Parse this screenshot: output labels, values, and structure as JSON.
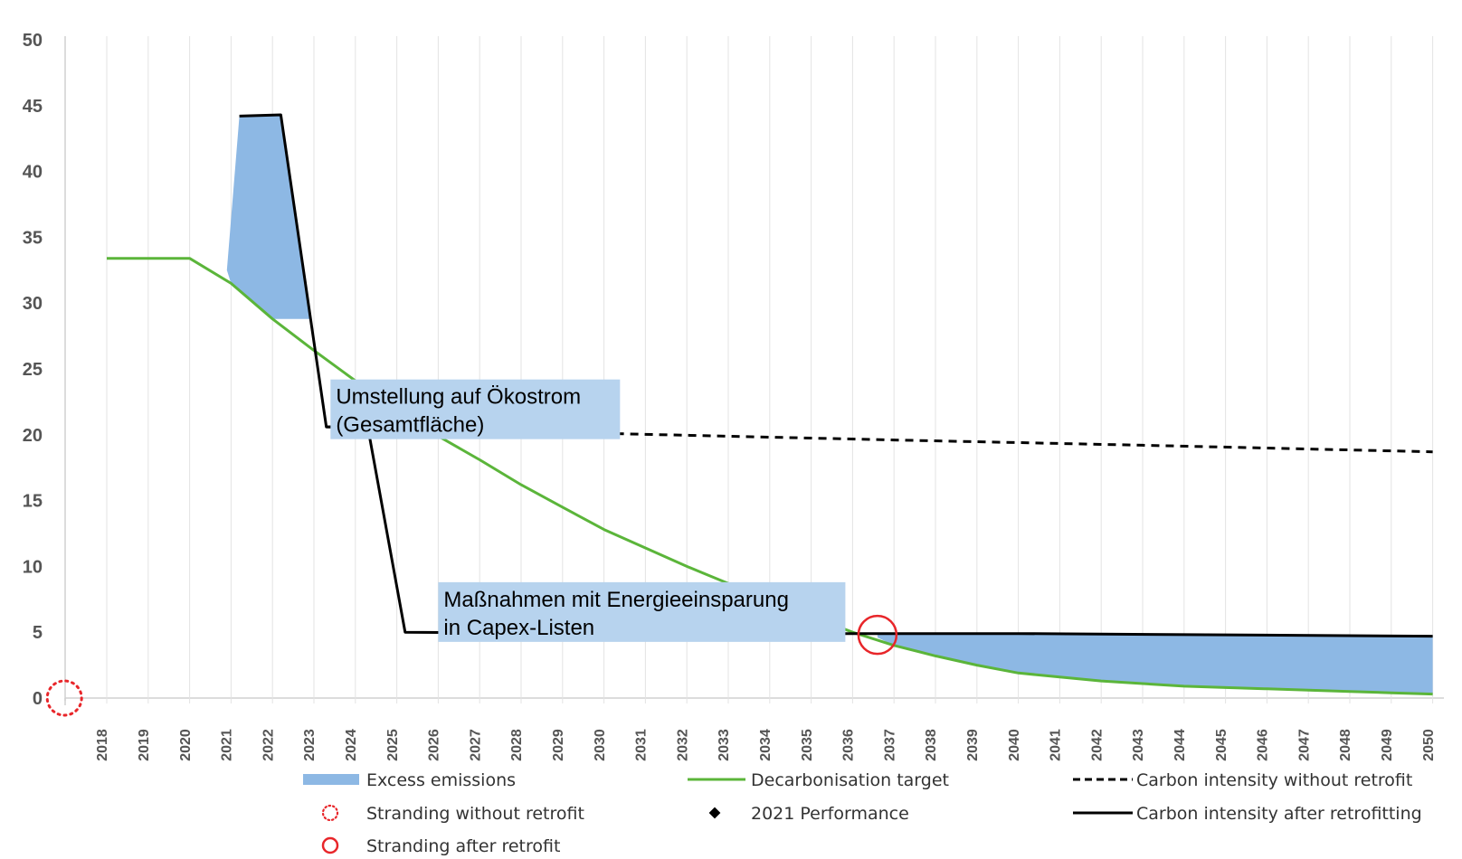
{
  "chart_data": {
    "type": "line",
    "title": "",
    "xlabel": "",
    "ylabel": "",
    "ylim": [
      0,
      50
    ],
    "yticks": [
      "0",
      "5",
      "10",
      "15",
      "20",
      "25",
      "30",
      "35",
      "40",
      "45",
      "50"
    ],
    "grid": "vertical",
    "categories": [
      "2018",
      "2019",
      "2020",
      "2021",
      "2022",
      "2023",
      "2024",
      "2025",
      "2026",
      "2027",
      "2028",
      "2029",
      "2030",
      "2031",
      "2032",
      "2033",
      "2034",
      "2035",
      "2036",
      "2037",
      "2038",
      "2039",
      "2040",
      "2041",
      "2042",
      "2043",
      "2044",
      "2045",
      "2046",
      "2047",
      "2048",
      "2049",
      "2050"
    ],
    "series": [
      {
        "name": "Decarbonisation target",
        "color": "#5BB53A",
        "style": "solid",
        "points": [
          [
            2018,
            33.4
          ],
          [
            2020,
            33.4
          ],
          [
            2021,
            31.5
          ],
          [
            2022,
            28.8
          ],
          [
            2023,
            26.4
          ],
          [
            2024,
            24.1
          ],
          [
            2025,
            21.9
          ],
          [
            2026,
            19.9
          ],
          [
            2027,
            18.1
          ],
          [
            2028,
            16.2
          ],
          [
            2029,
            14.5
          ],
          [
            2030,
            12.8
          ],
          [
            2031,
            11.4
          ],
          [
            2032,
            10.0
          ],
          [
            2033,
            8.7
          ],
          [
            2034,
            7.4
          ],
          [
            2035,
            6.2
          ],
          [
            2036,
            5.0
          ],
          [
            2037,
            4.0
          ],
          [
            2038,
            3.2
          ],
          [
            2039,
            2.5
          ],
          [
            2040,
            1.9
          ],
          [
            2041,
            1.6
          ],
          [
            2042,
            1.3
          ],
          [
            2043,
            1.1
          ],
          [
            2044,
            0.9
          ],
          [
            2045,
            0.8
          ],
          [
            2046,
            0.7
          ],
          [
            2047,
            0.6
          ],
          [
            2048,
            0.5
          ],
          [
            2049,
            0.4
          ],
          [
            2050,
            0.3
          ]
        ]
      },
      {
        "name": "Carbon intensity without retrofit",
        "color": "#000000",
        "style": "dashed",
        "points": [
          [
            2023.3,
            20.6
          ],
          [
            2030,
            20.1
          ],
          [
            2037,
            19.6
          ],
          [
            2043,
            19.2
          ],
          [
            2050,
            18.7
          ]
        ]
      },
      {
        "name": "Carbon intensity after retrofitting",
        "color": "#000000",
        "style": "solid",
        "points": [
          [
            2021.2,
            44.2
          ],
          [
            2022.2,
            44.3
          ],
          [
            2023.3,
            20.6
          ],
          [
            2024.3,
            20.6
          ],
          [
            2025.2,
            5.0
          ],
          [
            2030,
            4.9
          ],
          [
            2035,
            4.9
          ],
          [
            2040,
            4.9
          ],
          [
            2045,
            4.8
          ],
          [
            2050,
            4.7
          ]
        ]
      }
    ],
    "excess_emissions": [
      {
        "name": "2021-2023",
        "color": "#8DB8E4",
        "top": [
          [
            2020.9,
            32.5
          ],
          [
            2021.2,
            44.2
          ],
          [
            2022.2,
            44.3
          ],
          [
            2022.9,
            29.0
          ]
        ],
        "bottom": [
          [
            2020.9,
            32.5
          ],
          [
            2021.0,
            31.5
          ],
          [
            2022.0,
            28.8
          ],
          [
            2022.9,
            28.8
          ]
        ]
      },
      {
        "name": "2036-2050",
        "color": "#8DB8E4",
        "top": [
          [
            2036.6,
            4.9
          ],
          [
            2045,
            4.8
          ],
          [
            2050,
            4.7
          ]
        ],
        "bottom": [
          [
            2036.6,
            4.6
          ],
          [
            2037,
            4.0
          ],
          [
            2038,
            3.2
          ],
          [
            2039,
            2.5
          ],
          [
            2040,
            1.9
          ],
          [
            2041,
            1.6
          ],
          [
            2042,
            1.3
          ],
          [
            2043,
            1.1
          ],
          [
            2044,
            0.9
          ],
          [
            2045,
            0.8
          ],
          [
            2046,
            0.7
          ],
          [
            2047,
            0.6
          ],
          [
            2048,
            0.5
          ],
          [
            2049,
            0.4
          ],
          [
            2050,
            0.3
          ]
        ]
      }
    ],
    "stranding_without_retrofit": {
      "x": 2017,
      "y": 0
    },
    "stranding_after_retrofit": {
      "x": 2036.6,
      "y": 4.8
    },
    "annotations": [
      {
        "lines": [
          "Umstellung auf Ökostrom",
          "(Gesamtfläche)"
        ],
        "x": 2023.4,
        "y": 24.2
      },
      {
        "lines": [
          "Maßnahmen mit Energieeinsparung",
          "in Capex-Listen"
        ],
        "x": 2026.0,
        "y": 8.8
      }
    ],
    "legend": {
      "placement": "bottom",
      "items": [
        {
          "label": "Excess emissions",
          "symbol": "area"
        },
        {
          "label": "Decarbonisation target",
          "symbol": "green-line"
        },
        {
          "label": "Carbon intensity without retrofit",
          "symbol": "dashed-line"
        },
        {
          "label": "Stranding without retrofit",
          "symbol": "dotted-red-circle"
        },
        {
          "label": "2021 Performance",
          "symbol": "diamond"
        },
        {
          "label": "Carbon intensity after retrofitting",
          "symbol": "black-line"
        },
        {
          "label": "Stranding after retrofit",
          "symbol": "red-circle"
        }
      ]
    },
    "colors": {
      "excess": "#8DB8E4",
      "annotation_bg": "#B7D3EE",
      "target": "#5BB53A",
      "stranding": "#E8262A",
      "grid": "#E3E3E3",
      "axis": "#D0D0D0"
    }
  }
}
